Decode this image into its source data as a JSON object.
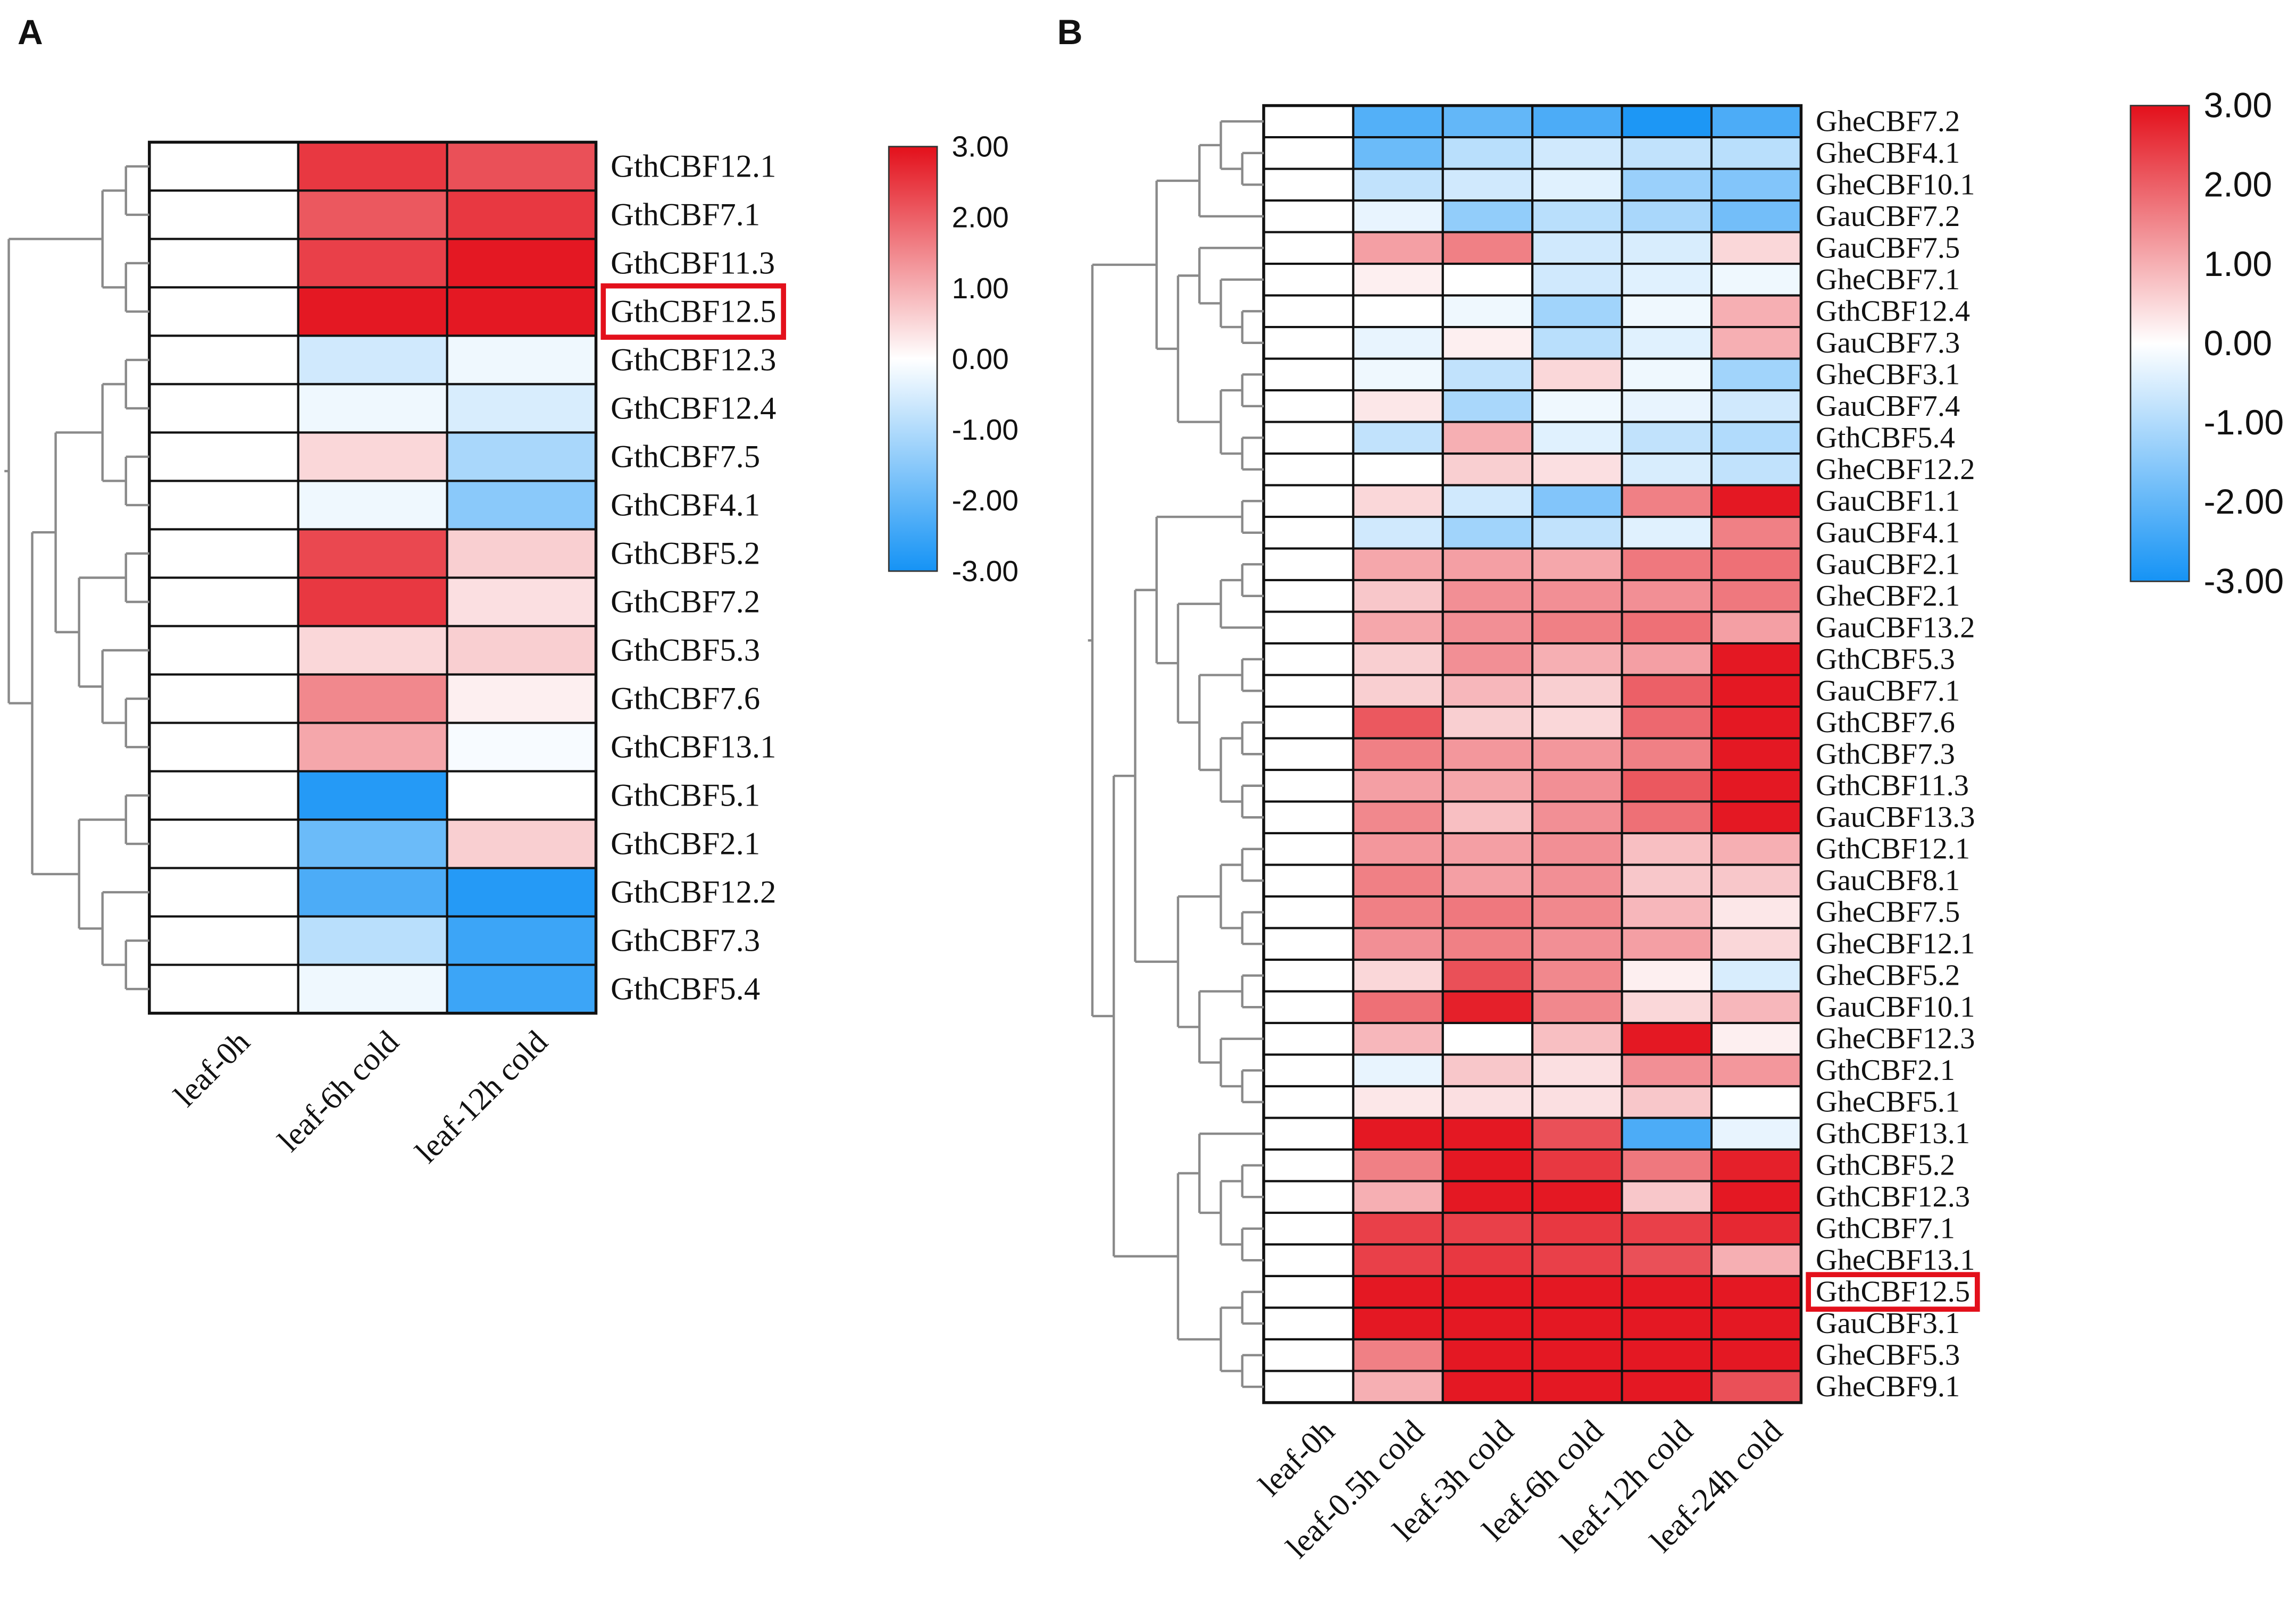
{
  "chart_data": [
    {
      "type": "heatmap",
      "panel": "A",
      "rows": [
        "GthCBF12.1",
        "GthCBF7.1",
        "GthCBF11.3",
        "GthCBF12.5",
        "GthCBF12.3",
        "GthCBF12.4",
        "GthCBF7.5",
        "GthCBF4.1",
        "GthCBF5.2",
        "GthCBF7.2",
        "GthCBF5.3",
        "GthCBF7.6",
        "GthCBF13.1",
        "GthCBF5.1",
        "GthCBF2.1",
        "GthCBF12.2",
        "GthCBF7.3",
        "GthCBF5.4"
      ],
      "columns": [
        "leaf-0h",
        "leaf-6h cold",
        "leaf-12h cold"
      ],
      "values": [
        [
          0,
          2.5,
          2.2
        ],
        [
          0,
          2.1,
          2.5
        ],
        [
          0,
          2.4,
          2.9
        ],
        [
          0,
          2.9,
          2.9
        ],
        [
          0,
          -0.6,
          -0.2
        ],
        [
          0,
          -0.2,
          -0.5
        ],
        [
          0,
          0.5,
          -1.1
        ],
        [
          0,
          -0.2,
          -1.5
        ],
        [
          0,
          2.3,
          0.6
        ],
        [
          0,
          2.5,
          0.4
        ],
        [
          0,
          0.5,
          0.6
        ],
        [
          0,
          1.5,
          0.2
        ],
        [
          0,
          1.1,
          -0.1
        ],
        [
          0,
          -2.8,
          0
        ],
        [
          0,
          -1.9,
          0.6
        ],
        [
          0,
          -2.3,
          -2.8
        ],
        [
          0,
          -0.9,
          -2.5
        ],
        [
          0,
          -0.2,
          -2.5
        ]
      ],
      "zlim": [
        -3,
        3
      ],
      "zticks": [
        {
          "value": 3,
          "label": "3.00"
        },
        {
          "value": 2,
          "label": "2.00"
        },
        {
          "value": 1,
          "label": "1.00"
        },
        {
          "value": 0,
          "label": "0.00"
        },
        {
          "value": -1,
          "label": "-1.00"
        },
        {
          "value": -2,
          "label": "-2.00"
        },
        {
          "value": -3,
          "label": "-3.00"
        }
      ],
      "colors": [
        "#1593f5",
        "#ffffff",
        "#e3101b"
      ],
      "highlight_row": 3
    },
    {
      "type": "heatmap",
      "panel": "B",
      "rows": [
        "GheCBF7.2",
        "GheCBF4.1",
        "GheCBF10.1",
        "GauCBF7.2",
        "GauCBF7.5",
        "GheCBF7.1",
        "GthCBF12.4",
        "GauCBF7.3",
        "GheCBF3.1",
        "GauCBF7.4",
        "GthCBF5.4",
        "GheCBF12.2",
        "GauCBF1.1",
        "GauCBF4.1",
        "GauCBF2.1",
        "GheCBF2.1",
        "GauCBF13.2",
        "GthCBF5.3",
        "GauCBF7.1",
        "GthCBF7.6",
        "GthCBF7.3",
        "GthCBF11.3",
        "GauCBF13.3",
        "GthCBF12.1",
        "GauCBF8.1",
        "GheCBF7.5",
        "GheCBF12.1",
        "GheCBF5.2",
        "GauCBF10.1",
        "GheCBF12.3",
        "GthCBF2.1",
        "GheCBF5.1",
        "GthCBF13.1",
        "GthCBF5.2",
        "GthCBF12.3",
        "GthCBF7.1",
        "GheCBF13.1",
        "GthCBF12.5",
        "GauCBF3.1",
        "GheCBF5.3",
        "GheCBF9.1"
      ],
      "columns": [
        "leaf-0h",
        "leaf-0.5h cold",
        "leaf-3h cold",
        "leaf-6h cold",
        "leaf-12h cold",
        "leaf-24h cold"
      ],
      "values": [
        [
          0,
          -2.2,
          -2.0,
          -2.3,
          -2.9,
          -2.3
        ],
        [
          0,
          -1.9,
          -0.9,
          -0.6,
          -0.8,
          -0.9
        ],
        [
          0,
          -0.8,
          -0.6,
          -0.4,
          -1.3,
          -1.6
        ],
        [
          0,
          -0.3,
          -1.4,
          -0.9,
          -1.1,
          -1.8
        ],
        [
          0,
          1.2,
          1.6,
          -0.6,
          -0.5,
          0.5
        ],
        [
          0,
          0.2,
          0,
          -0.6,
          -0.4,
          -0.2
        ],
        [
          0,
          0,
          -0.2,
          -1.2,
          -0.2,
          1.0
        ],
        [
          0,
          -0.3,
          0.2,
          -0.9,
          -0.4,
          1.0
        ],
        [
          0,
          -0.2,
          -0.8,
          0.5,
          -0.2,
          -1.2
        ],
        [
          0,
          0.3,
          -1.1,
          -0.2,
          -0.3,
          -0.6
        ],
        [
          0,
          -0.8,
          1.0,
          -0.4,
          -0.8,
          -1.0
        ],
        [
          0,
          0,
          0.6,
          0.4,
          -0.5,
          -0.8
        ],
        [
          0,
          0.5,
          -0.6,
          -1.6,
          1.6,
          2.9
        ],
        [
          0,
          -0.6,
          -1.2,
          -0.8,
          -0.4,
          1.6
        ],
        [
          0,
          1.1,
          1.2,
          1.1,
          1.7,
          1.8
        ],
        [
          0,
          0.7,
          1.4,
          1.4,
          1.4,
          1.7
        ],
        [
          0,
          1.1,
          1.4,
          1.6,
          1.8,
          1.2
        ],
        [
          0,
          0.6,
          1.4,
          1.0,
          1.2,
          2.9
        ],
        [
          0,
          0.6,
          0.9,
          0.6,
          2.0,
          2.9
        ],
        [
          0,
          2.1,
          0.6,
          0.5,
          1.9,
          2.9
        ],
        [
          0,
          1.6,
          1.3,
          1.3,
          1.6,
          2.9
        ],
        [
          0,
          1.2,
          1.1,
          1.4,
          2.1,
          2.9
        ],
        [
          0,
          1.5,
          0.8,
          1.4,
          1.8,
          2.9
        ],
        [
          0,
          1.3,
          1.2,
          1.4,
          0.8,
          1.0
        ],
        [
          0,
          1.6,
          1.2,
          1.4,
          0.7,
          0.7
        ],
        [
          0,
          1.6,
          1.7,
          1.5,
          0.9,
          0.3
        ],
        [
          0,
          1.4,
          1.6,
          1.4,
          1.2,
          0.5
        ],
        [
          0,
          0.5,
          2.2,
          1.5,
          0.2,
          -0.5
        ],
        [
          0,
          1.8,
          2.8,
          1.5,
          0.5,
          0.9
        ],
        [
          0,
          0.9,
          0,
          0.8,
          2.9,
          0.2
        ],
        [
          0,
          -0.3,
          0.7,
          0.4,
          1.4,
          1.3
        ],
        [
          0,
          0.3,
          0.4,
          0.4,
          0.7,
          0
        ],
        [
          0,
          2.9,
          2.9,
          2.2,
          -2.3,
          -0.3
        ],
        [
          0,
          1.6,
          2.9,
          2.5,
          1.7,
          2.8
        ],
        [
          0,
          1.0,
          2.9,
          2.9,
          0.7,
          2.9
        ],
        [
          0,
          2.4,
          2.4,
          2.5,
          2.4,
          2.7
        ],
        [
          0,
          2.4,
          2.5,
          2.4,
          2.2,
          1.0
        ],
        [
          0,
          2.9,
          2.9,
          2.9,
          2.9,
          2.9
        ],
        [
          0,
          2.9,
          2.9,
          2.9,
          2.9,
          2.9
        ],
        [
          0,
          1.6,
          2.9,
          2.9,
          2.9,
          2.9
        ],
        [
          0,
          1.0,
          2.9,
          2.9,
          2.9,
          2.2
        ]
      ],
      "zlim": [
        -3,
        3
      ],
      "zticks": [
        {
          "value": 3,
          "label": "3.00"
        },
        {
          "value": 2,
          "label": "2.00"
        },
        {
          "value": 1,
          "label": "1.00"
        },
        {
          "value": 0,
          "label": "0.00"
        },
        {
          "value": -1,
          "label": "-1.00"
        },
        {
          "value": -2,
          "label": "-2.00"
        },
        {
          "value": -3,
          "label": "-3.00"
        }
      ],
      "colors": [
        "#1593f5",
        "#ffffff",
        "#e3101b"
      ],
      "highlight_row": 37
    }
  ]
}
